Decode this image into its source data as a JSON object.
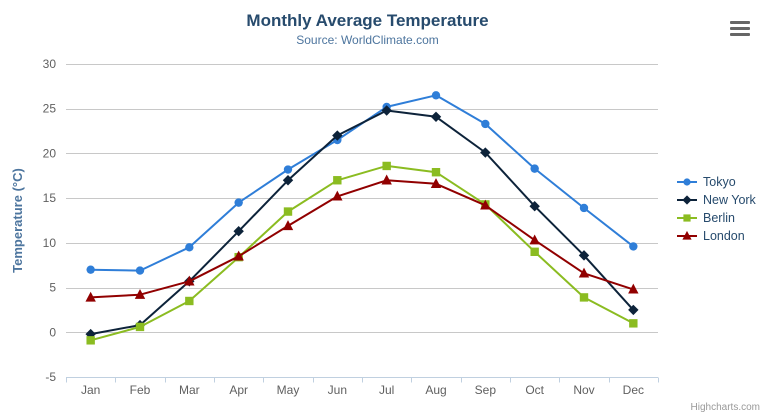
{
  "chart_data": {
    "type": "line",
    "title": "Monthly Average Temperature",
    "subtitle": "Source: WorldClimate.com",
    "xlabel": "",
    "ylabel": "Temperature (°C)",
    "ylim": [
      -5,
      30
    ],
    "ytick_interval": 5,
    "grid": true,
    "legend_position": "right",
    "categories": [
      "Jan",
      "Feb",
      "Mar",
      "Apr",
      "May",
      "Jun",
      "Jul",
      "Aug",
      "Sep",
      "Oct",
      "Nov",
      "Dec"
    ],
    "series": [
      {
        "name": "Tokyo",
        "marker": "circle",
        "color": "#2f7ed8",
        "values": [
          7.0,
          6.9,
          9.5,
          14.5,
          18.2,
          21.5,
          25.2,
          26.5,
          23.3,
          18.3,
          13.9,
          9.6
        ]
      },
      {
        "name": "New York",
        "marker": "diamond",
        "color": "#0d233a",
        "values": [
          -0.2,
          0.8,
          5.7,
          11.3,
          17.0,
          22.0,
          24.8,
          24.1,
          20.1,
          14.1,
          8.6,
          2.5
        ]
      },
      {
        "name": "Berlin",
        "marker": "square",
        "color": "#8bbc21",
        "values": [
          -0.9,
          0.6,
          3.5,
          8.4,
          13.5,
          17.0,
          18.6,
          17.9,
          14.3,
          9.0,
          3.9,
          1.0
        ]
      },
      {
        "name": "London",
        "marker": "triangle",
        "color": "#910000",
        "values": [
          3.9,
          4.2,
          5.7,
          8.5,
          11.9,
          15.2,
          17.0,
          16.6,
          14.2,
          10.3,
          6.6,
          4.8
        ]
      }
    ]
  },
  "credits": {
    "text": "Highcharts.com"
  },
  "export_menu": {
    "icon": "hamburger-menu-icon"
  },
  "theme": {
    "title_color": "#274b6d",
    "subtitle_color": "#4d759e",
    "axis_title_color": "#4d759e",
    "axis_label_color": "#606060",
    "grid_color": "#c8c8c8",
    "axis_line_color": "#c0d0e0",
    "legend_text_color": "#274b6d",
    "credits_color": "#999999",
    "background": "#ffffff"
  }
}
